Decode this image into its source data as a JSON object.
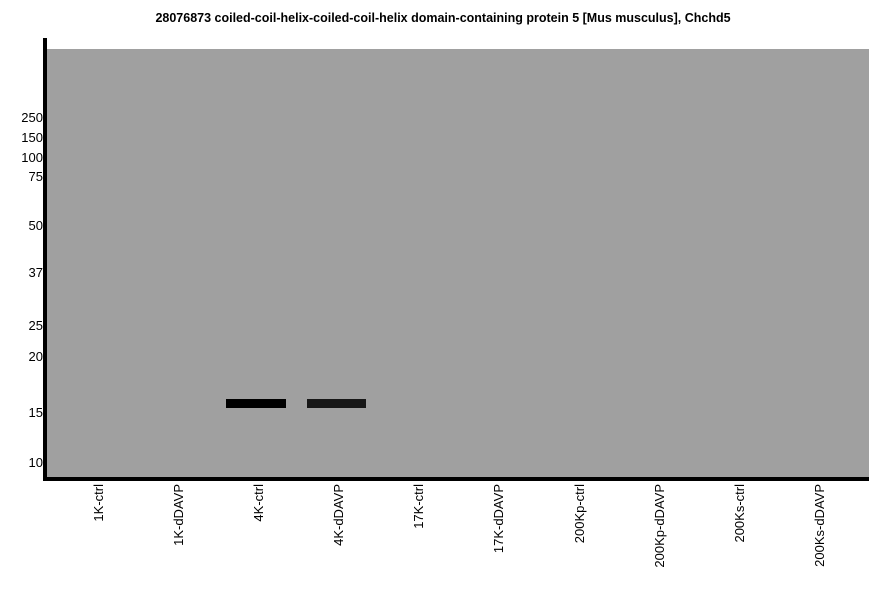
{
  "chart_data": {
    "type": "gel-blot",
    "title": "28076873 coiled-coil-helix-coiled-coil-helix domain-containing protein 5 [Mus musculus], Chchd5",
    "y_axis": {
      "tick_labels_kda": [
        250,
        150,
        100,
        75,
        50,
        37,
        25,
        20,
        15,
        10
      ],
      "scale": "gel-migration (log-like), molecular weight in kDa"
    },
    "categories": [
      "1K-ctrl",
      "1K-dDAVP",
      "4K-ctrl",
      "4K-dDAVP",
      "17K-ctrl",
      "17K-dDAVP",
      "200Kp-ctrl",
      "200Kp-dDAVP",
      "200Ks-ctrl",
      "200Ks-dDAVP"
    ],
    "bands": [
      {
        "lane": "4K-ctrl",
        "lane_index": 2,
        "approx_kda": 16,
        "color": "#000000",
        "relative_intensity": 1.0
      },
      {
        "lane": "4K-dDAVP",
        "lane_index": 3,
        "approx_kda": 16,
        "color": "#171717",
        "relative_intensity": 0.95
      }
    ],
    "colors": {
      "gel_background": "#a0a0a0",
      "axis": "#000000",
      "page_background": "#ffffff",
      "text": "#000000"
    },
    "legend": null,
    "grid": false
  }
}
